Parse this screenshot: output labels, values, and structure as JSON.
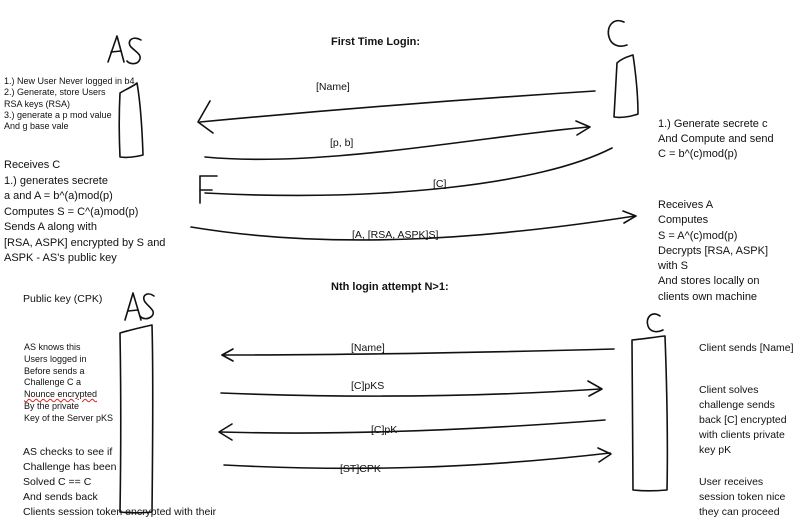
{
  "titles": {
    "first": "First Time Login:",
    "nth": "Nth login attempt N>1:"
  },
  "actors": {
    "as_top": "AS",
    "c_top": "C",
    "as_bottom": "AS",
    "c_bottom": "C"
  },
  "first_login": {
    "as_notes": [
      "1.) New User Never logged in b4",
      "2.) Generate, store Users",
      "RSA keys (RSA)",
      "3.) generate a p mod value",
      "And g base vale"
    ],
    "as_receives": [
      "Receives C",
      "1.) generates secrete",
      "a and A = b^(a)mod(p)",
      "Computes S = C^(a)mod(p)",
      "Sends A along with",
      " [RSA, ASPK] encrypted by S and",
      "ASPK - AS's public key"
    ],
    "client_generate": [
      "1.) Generate secrete c",
      "And Compute and send",
      "C = b^(c)mod(p)"
    ],
    "client_receives": [
      "Receives A",
      "Computes",
      " S = A^(c)mod(p)",
      "Decrypts [RSA, ASPK]",
      "with S",
      "And stores locally on",
      "clients own machine"
    ],
    "messages": {
      "name": "[Name]",
      "pb": "[p, b]",
      "c": "[C]",
      "a": "[A, [RSA, ASPK]S]"
    }
  },
  "nth_login": {
    "public_key": "Public key (CPK)",
    "as_knows": [
      "AS knows this",
      "Users logged in",
      "Before sends a",
      "Challenge C a",
      "Nounce encrypted",
      "By the private",
      "Key of the Server pKS"
    ],
    "as_checks": [
      "AS checks to see if",
      "Challenge has been",
      "Solved C == C",
      "And sends back",
      "Clients session token encrypted with their"
    ],
    "client_sends": "Client sends [Name]",
    "client_solves": [
      "Client solves",
      "challenge sends",
      "back [C] encrypted",
      "with clients private",
      "key pK"
    ],
    "user_receives": [
      "User receives",
      "session token nice",
      "they can proceed"
    ],
    "messages": {
      "name": "[Name]",
      "cpks": "[C]pKS",
      "cpk": "[C]pK",
      "stcpk": "[ST]CPK"
    }
  }
}
